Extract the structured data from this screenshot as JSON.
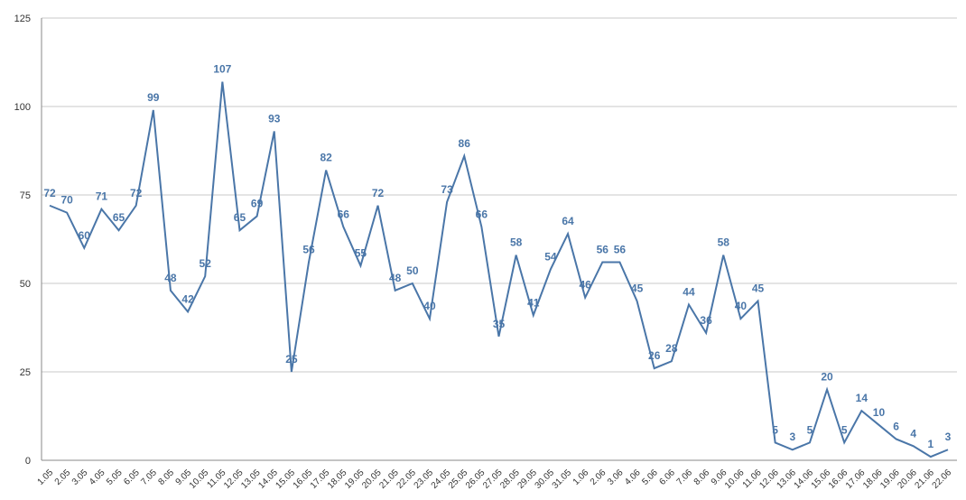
{
  "chart_data": {
    "type": "line",
    "categories": [
      "1.05",
      "2.05",
      "3.05",
      "4.05",
      "5.05",
      "6.05",
      "7.05",
      "8.05",
      "9.05",
      "10.05",
      "11.05",
      "12.05",
      "13.05",
      "14.05",
      "15.05",
      "16.05",
      "17.05",
      "18.05",
      "19.05",
      "20.05",
      "21.05",
      "22.05",
      "23.05",
      "24.05",
      "25.05",
      "26.05",
      "27.05",
      "28.05",
      "29.05",
      "30.05",
      "31.05",
      "1.06",
      "2.06",
      "3.06",
      "4.06",
      "5.06",
      "6.06",
      "7.06",
      "8.06",
      "9.06",
      "10.06",
      "11.06",
      "12.06",
      "13.06",
      "14.06",
      "15.06",
      "16.06",
      "17.06",
      "18.06",
      "19.06",
      "20.06",
      "21.06",
      "22.06"
    ],
    "values": [
      72,
      70,
      60,
      71,
      65,
      72,
      99,
      48,
      42,
      52,
      107,
      65,
      69,
      93,
      25,
      56,
      82,
      66,
      55,
      72,
      48,
      50,
      40,
      73,
      86,
      66,
      35,
      58,
      41,
      54,
      64,
      46,
      56,
      56,
      45,
      26,
      28,
      44,
      36,
      58,
      40,
      45,
      5,
      3,
      5,
      20,
      5,
      14,
      10,
      6,
      4,
      1,
      3
    ],
    "color": "#4a76a8",
    "ylim": [
      0,
      125
    ],
    "yticks": [
      0,
      25,
      50,
      75,
      100,
      125
    ],
    "grid": true
  }
}
